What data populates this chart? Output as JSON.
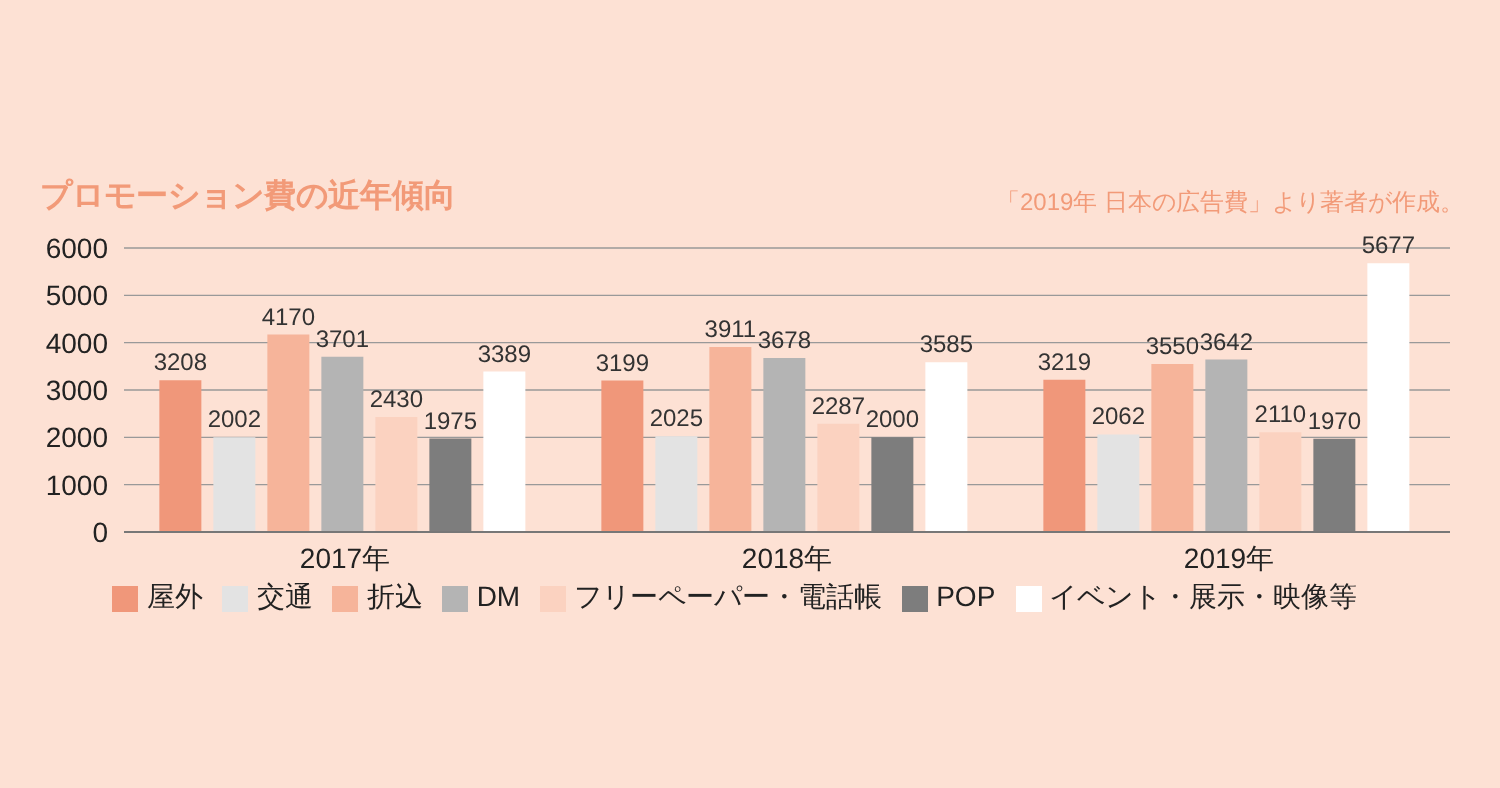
{
  "chart_data": {
    "type": "bar",
    "title": "プロモーション費の近年傾向",
    "annotations": [
      "「2019年 日本の広告費」より著者が作成。"
    ],
    "categories": [
      "2017年",
      "2018年",
      "2019年"
    ],
    "series": [
      {
        "name": "屋外",
        "color": "#f0977a",
        "values": [
          3208,
          3199,
          3219
        ]
      },
      {
        "name": "交通",
        "color": "#e3e3e3",
        "values": [
          2002,
          2025,
          2062
        ]
      },
      {
        "name": "折込",
        "color": "#f6b49a",
        "values": [
          4170,
          3911,
          3550
        ]
      },
      {
        "name": "DM",
        "color": "#b4b4b4",
        "values": [
          3701,
          3678,
          3642
        ]
      },
      {
        "name": "フリーペーパー・電話帳",
        "color": "#fbd2c0",
        "values": [
          2430,
          2287,
          2110
        ]
      },
      {
        "name": "POP",
        "color": "#7d7d7d",
        "values": [
          1975,
          2000,
          1970
        ]
      },
      {
        "name": "イベント・展示・映像等",
        "color": "#ffffff",
        "values": [
          3389,
          3585,
          5677
        ]
      }
    ],
    "ylim": [
      0,
      6000
    ],
    "yticks": [
      0,
      1000,
      2000,
      3000,
      4000,
      5000,
      6000
    ],
    "grid": "y",
    "legend": "bottom",
    "data_labels": true
  }
}
